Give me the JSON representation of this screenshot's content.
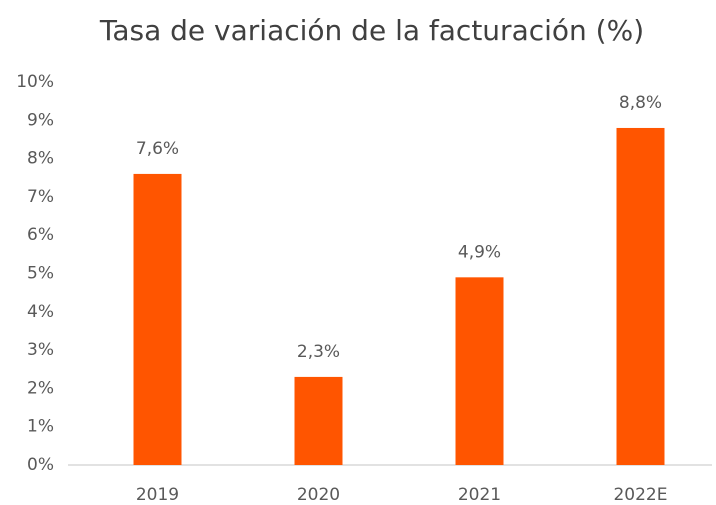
{
  "chart_data": {
    "type": "bar",
    "title": "Tasa de variación de la facturación (%)",
    "categories": [
      "2019",
      "2020",
      "2021",
      "2022E"
    ],
    "values": [
      7.6,
      2.3,
      4.9,
      8.8
    ],
    "value_labels": [
      "7,6%",
      "2,3%",
      "4,9%",
      "8,8%"
    ],
    "color": "#ff5500",
    "ylim": [
      0,
      10
    ],
    "yticks": [
      {
        "value": 0,
        "label": "0%"
      },
      {
        "value": 1,
        "label": "1%"
      },
      {
        "value": 2,
        "label": "2%"
      },
      {
        "value": 3,
        "label": "3%"
      },
      {
        "value": 4,
        "label": "4%"
      },
      {
        "value": 5,
        "label": "5%"
      },
      {
        "value": 6,
        "label": "6%"
      },
      {
        "value": 7,
        "label": "7%"
      },
      {
        "value": 8,
        "label": "8%"
      },
      {
        "value": 9,
        "label": "9%"
      },
      {
        "value": 10,
        "label": "10%"
      }
    ],
    "grid": false
  }
}
